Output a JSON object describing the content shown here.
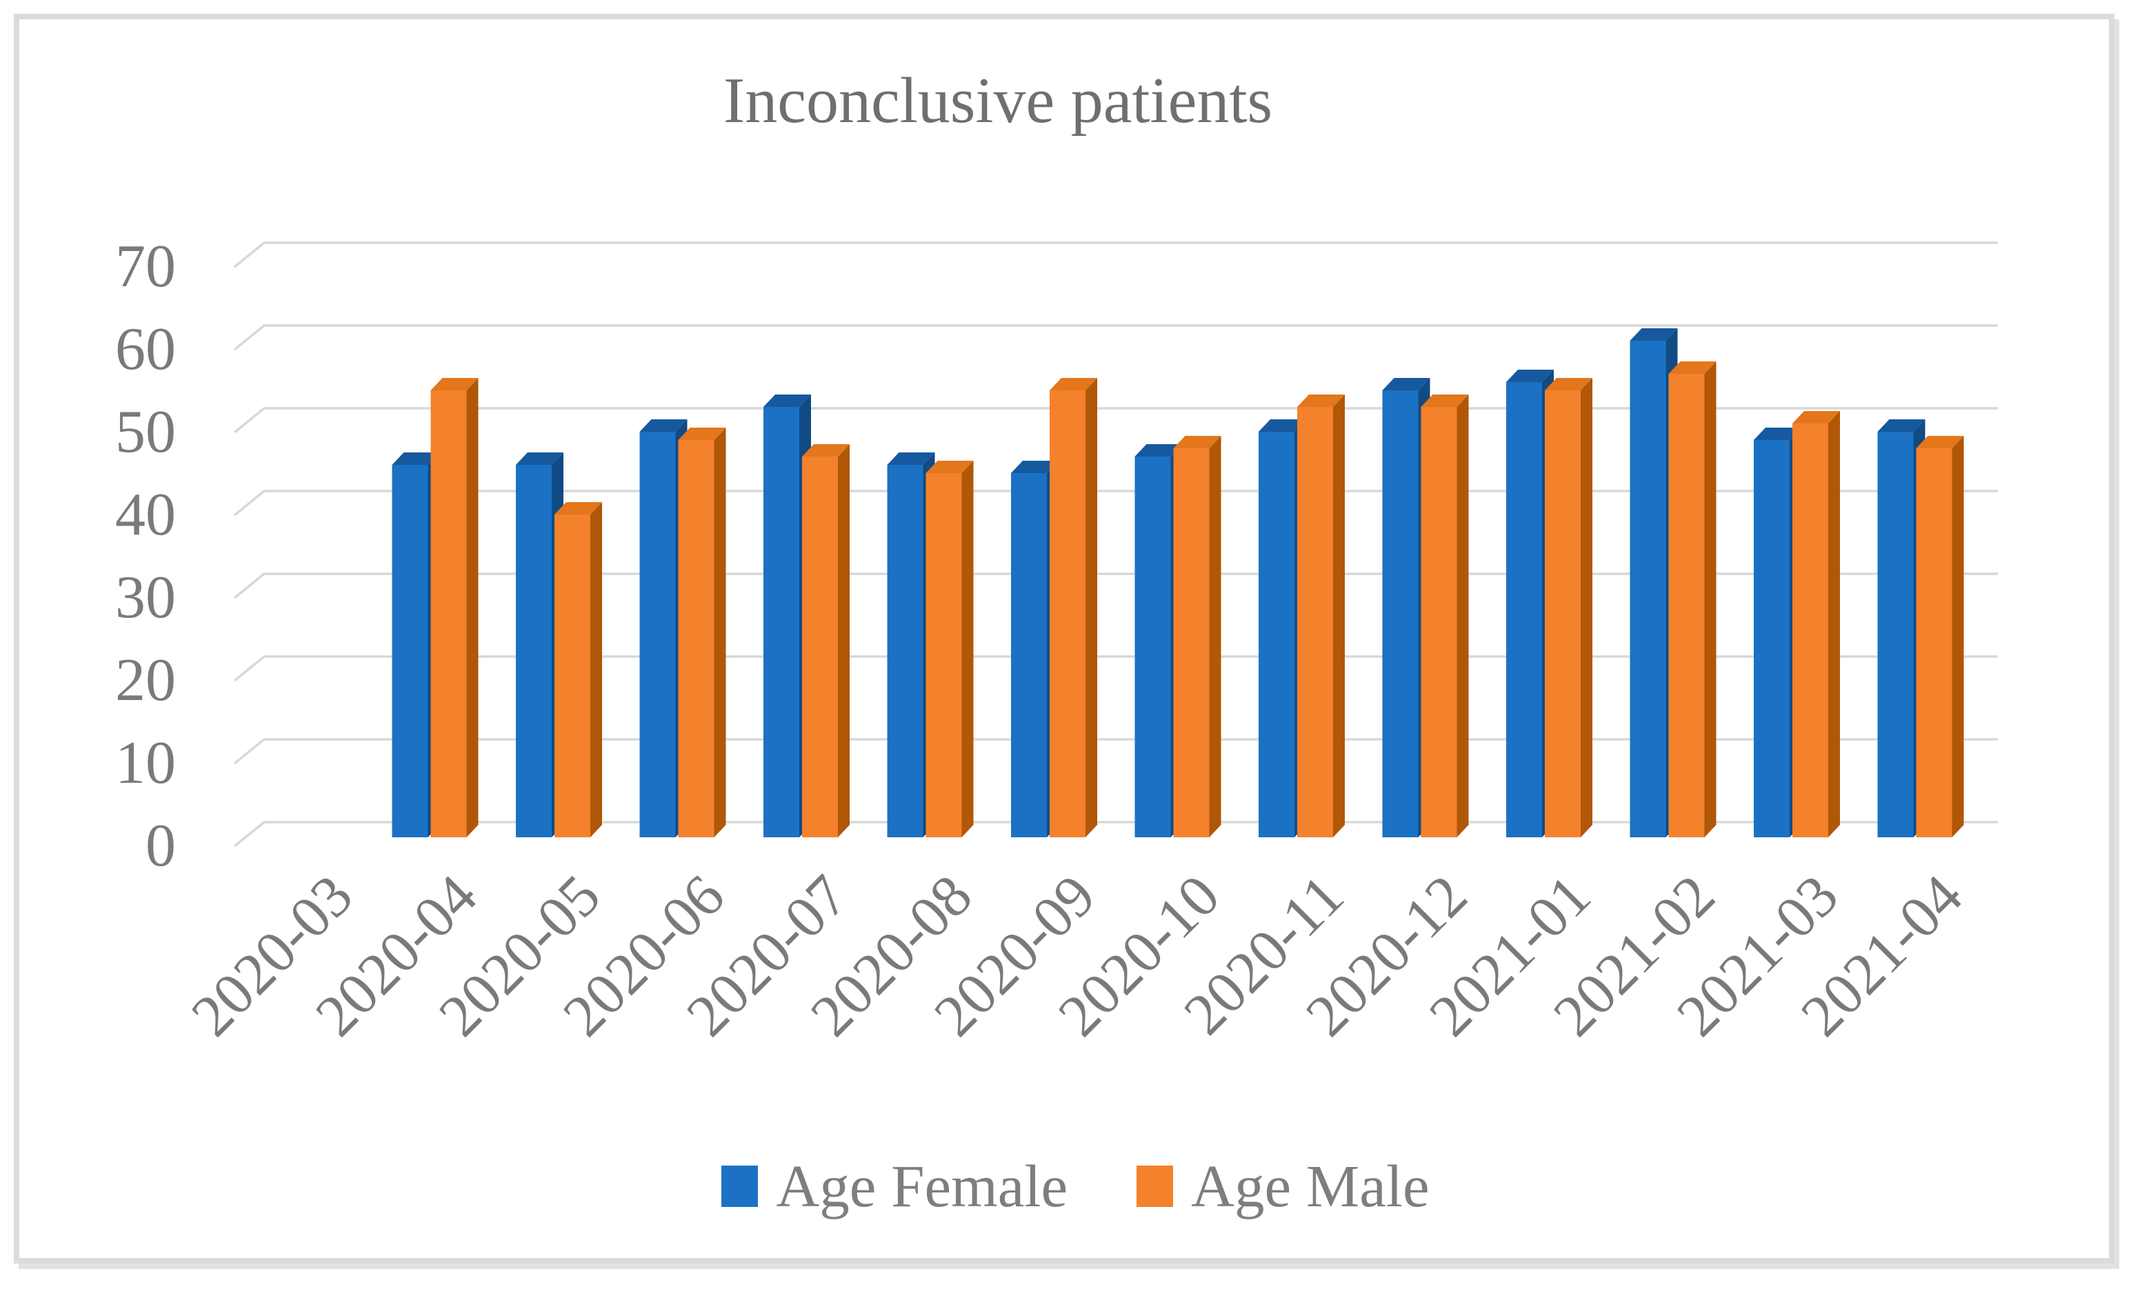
{
  "figure": {
    "background": "#FFFFFF",
    "border_color": "#DBDBDB"
  },
  "chart_data": {
    "type": "bar",
    "style": "3d-clustered-column",
    "title": "Inconclusive patients",
    "title_color": "#6F6F6F",
    "text_color": "#7A7A7A",
    "gridline_color": "#D8D8D8",
    "grid": true,
    "legend_position": "bottom",
    "xlabel": "",
    "ylabel": "",
    "ylim": [
      0,
      70
    ],
    "y_tick_step": 10,
    "y_ticks": [
      0,
      10,
      20,
      30,
      40,
      50,
      60,
      70
    ],
    "categories": [
      "2020-03",
      "2020-04",
      "2020-05",
      "2020-06",
      "2020-07",
      "2020-08",
      "2020-09",
      "2020-10",
      "2020-11",
      "2020-12",
      "2021-01",
      "2021-02",
      "2021-03",
      "2021-04"
    ],
    "series": [
      {
        "name": "Age Female",
        "color": "#1B72C4",
        "color_top": "#16599E",
        "color_side": "#114B84",
        "values": [
          null,
          45,
          45,
          49,
          52,
          45,
          44,
          46,
          49,
          54,
          55,
          60,
          48,
          49
        ]
      },
      {
        "name": "Age Male",
        "color": "#F4812C",
        "color_top": "#E4761B",
        "color_side": "#B05708",
        "values": [
          null,
          54,
          39,
          48,
          46,
          44,
          54,
          47,
          52,
          52,
          54,
          56,
          50,
          47
        ]
      }
    ]
  }
}
